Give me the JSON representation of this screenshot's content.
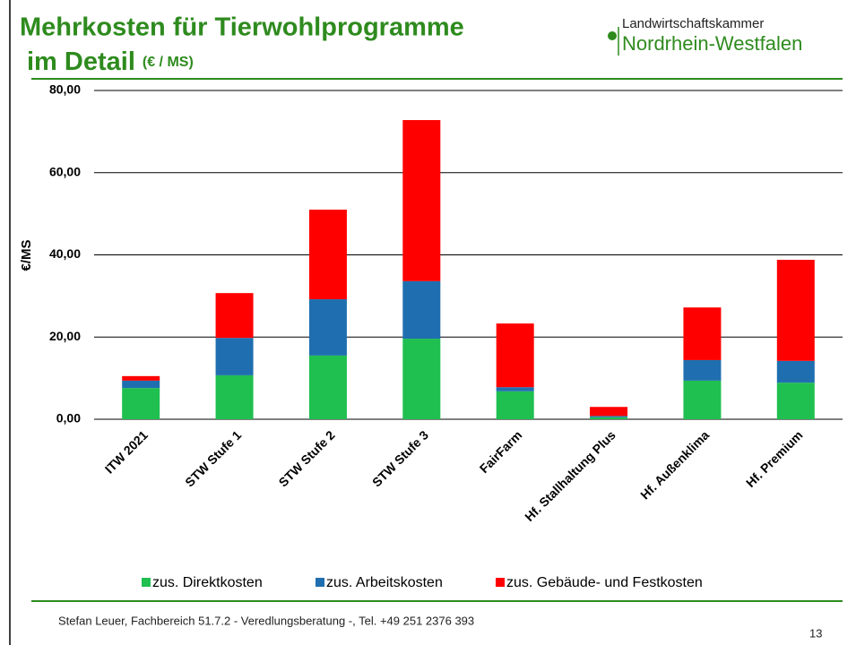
{
  "chart_data": {
    "type": "stacked_bar",
    "title": "Mehrkosten für Tierwohlprogramme",
    "title_line2": "im Detail",
    "unit": "(€ / MS)",
    "ylabel": "€/MS",
    "categories": [
      "ITW 2021",
      "STW Stufe 1",
      "STW Stufe 2",
      "STW Stufe 3",
      "FairFarm",
      "Hf. Stallhaltung Plus",
      "Hf. Außenklima",
      "Hf. Premium"
    ],
    "series": [
      {
        "name": "zus. Direktkosten",
        "color": "#1fbf50",
        "values": [
          7.6,
          10.7,
          15.5,
          19.6,
          6.8,
          0.5,
          9.4,
          8.9
        ]
      },
      {
        "name": "zus. Arbeitskosten",
        "color": "#1f6fb0",
        "values": [
          1.8,
          9.1,
          13.7,
          14.0,
          1.0,
          0.3,
          5.0,
          5.3
        ]
      },
      {
        "name": "zus. Gebäude- und Festkosten",
        "color": "#ff0000",
        "values": [
          1.1,
          10.9,
          21.8,
          39.2,
          15.5,
          2.2,
          12.8,
          24.6
        ]
      }
    ],
    "ylim": [
      0,
      80
    ],
    "yticks": [
      {
        "value": 0,
        "label": "0,00"
      },
      {
        "value": 20,
        "label": "20,00"
      },
      {
        "value": 40,
        "label": "40,00"
      },
      {
        "value": 60,
        "label": "60,00"
      },
      {
        "value": 80,
        "label": "80,00"
      }
    ],
    "grid": true,
    "legend": "bottom"
  },
  "logo": {
    "line1": "Landwirtschaftskammer",
    "line2": "Nordrhein-Westfalen"
  },
  "footer": "Stefan Leuer, Fachbereich 51.7.2 - Veredlungsberatung -, Tel. +49 251 2376 393",
  "page_number": "13"
}
